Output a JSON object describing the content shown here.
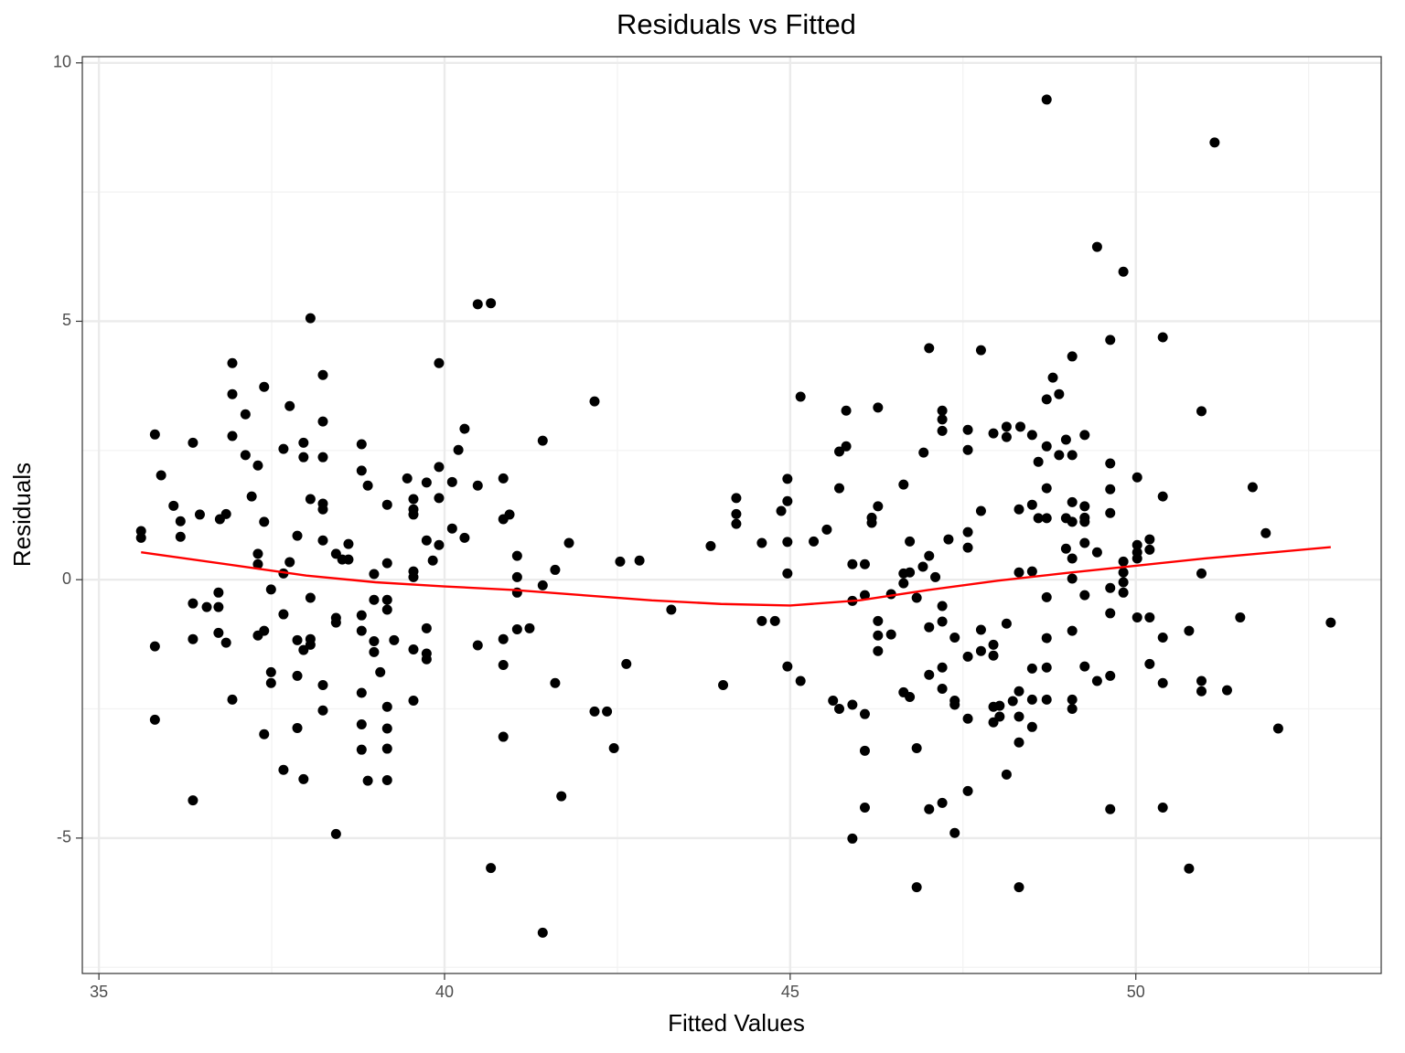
{
  "chart_data": {
    "type": "scatter",
    "title": "Residuals vs Fitted",
    "x_label": "Fitted Values",
    "y_label": "Residuals",
    "color": "#000000",
    "x": [
      35.61,
      35.61,
      35.81,
      35.81,
      35.81,
      35.9,
      36.08,
      36.18,
      36.18,
      36.36,
      36.36,
      36.36,
      36.36,
      36.46,
      36.56,
      36.73,
      36.73,
      36.73,
      36.75,
      36.84,
      36.84,
      36.93,
      36.93,
      36.93,
      36.93,
      37.12,
      37.12,
      37.21,
      37.3,
      37.3,
      37.3,
      37.3,
      37.39,
      37.39,
      37.39,
      37.39,
      37.49,
      37.49,
      37.49,
      37.67,
      37.67,
      37.67,
      37.67,
      37.76,
      37.76,
      37.87,
      37.87,
      37.87,
      37.87,
      37.96,
      37.96,
      37.96,
      37.96,
      38.06,
      38.06,
      38.06,
      38.06,
      38.06,
      38.24,
      38.24,
      38.24,
      38.24,
      38.24,
      38.24,
      38.24,
      38.24,
      38.43,
      38.43,
      38.43,
      38.43,
      38.52,
      38.61,
      38.61,
      38.8,
      38.8,
      38.8,
      38.8,
      38.8,
      38.8,
      38.8,
      38.89,
      38.89,
      38.98,
      38.98,
      38.98,
      38.98,
      39.07,
      39.17,
      39.17,
      39.17,
      39.17,
      39.17,
      39.17,
      39.17,
      39.17,
      39.27,
      39.46,
      39.55,
      39.55,
      39.55,
      39.55,
      39.55,
      39.55,
      39.55,
      39.74,
      39.74,
      39.74,
      39.74,
      39.74,
      39.83,
      39.92,
      39.92,
      39.92,
      39.92,
      40.11,
      40.11,
      40.2,
      40.29,
      40.29,
      40.48,
      40.48,
      40.48,
      40.67,
      40.67,
      40.85,
      40.85,
      40.85,
      40.85,
      40.85,
      40.94,
      41.05,
      41.05,
      41.05,
      41.05,
      41.23,
      41.42,
      41.42,
      41.42,
      41.6,
      41.6,
      41.69,
      41.8,
      42.17,
      42.17,
      42.35,
      42.45,
      42.54,
      42.63,
      42.82,
      43.28,
      43.85,
      44.03,
      44.22,
      44.22,
      44.22,
      44.59,
      44.59,
      44.78,
      44.87,
      44.96,
      44.96,
      44.96,
      44.96,
      44.96,
      45.15,
      45.15,
      45.34,
      45.53,
      45.62,
      45.71,
      45.71,
      45.71,
      45.81,
      45.81,
      45.9,
      45.9,
      45.9,
      45.9,
      46.08,
      46.08,
      46.08,
      46.08,
      46.08,
      46.18,
      46.18,
      46.27,
      46.27,
      46.27,
      46.27,
      46.27,
      46.46,
      46.46,
      46.64,
      46.64,
      46.64,
      46.64,
      46.73,
      46.73,
      46.73,
      46.83,
      46.83,
      46.83,
      46.92,
      46.93,
      47.01,
      47.01,
      47.01,
      47.01,
      47.01,
      47.1,
      47.2,
      47.2,
      47.2,
      47.2,
      47.2,
      47.2,
      47.2,
      47.2,
      47.29,
      47.38,
      47.38,
      47.38,
      47.38,
      47.57,
      47.57,
      47.57,
      47.57,
      47.57,
      47.57,
      47.57,
      47.76,
      47.76,
      47.76,
      47.76,
      47.94,
      47.94,
      47.94,
      47.94,
      47.94,
      48.03,
      48.03,
      48.13,
      48.13,
      48.13,
      48.13,
      48.22,
      48.31,
      48.31,
      48.31,
      48.31,
      48.31,
      48.31,
      48.33,
      48.5,
      48.5,
      48.5,
      48.5,
      48.5,
      48.5,
      48.59,
      48.59,
      48.71,
      48.71,
      48.71,
      48.71,
      48.71,
      48.71,
      48.71,
      48.71,
      48.71,
      48.8,
      48.89,
      48.89,
      48.99,
      48.99,
      48.99,
      49.08,
      49.08,
      49.08,
      49.08,
      49.08,
      49.08,
      49.08,
      49.08,
      49.08,
      49.26,
      49.26,
      49.26,
      49.26,
      49.26,
      49.26,
      49.26,
      49.44,
      49.44,
      49.44,
      49.63,
      49.63,
      49.63,
      49.63,
      49.63,
      49.63,
      49.63,
      49.63,
      49.82,
      49.82,
      49.82,
      49.82,
      49.82,
      50.02,
      50.02,
      50.02,
      50.02,
      50.02,
      50.2,
      50.2,
      50.2,
      50.2,
      50.39,
      50.39,
      50.39,
      50.39,
      50.39,
      50.77,
      50.77,
      50.95,
      50.95,
      50.95,
      50.95,
      51.14,
      51.32,
      51.51,
      51.69,
      51.88,
      52.06,
      52.82
    ],
    "values": [
      0.94,
      0.81,
      2.81,
      -1.29,
      -2.71,
      2.02,
      1.43,
      1.13,
      0.83,
      2.65,
      -0.46,
      -1.15,
      -4.27,
      1.26,
      -0.53,
      -0.25,
      -0.53,
      -1.03,
      1.17,
      1.27,
      -1.22,
      4.19,
      3.59,
      2.78,
      -2.32,
      3.2,
      2.41,
      1.61,
      2.21,
      0.5,
      0.3,
      -1.08,
      3.73,
      1.12,
      -0.99,
      -2.99,
      -0.19,
      -1.79,
      -2.0,
      2.53,
      0.12,
      -0.67,
      -3.68,
      3.36,
      0.34,
      0.85,
      -1.17,
      -1.86,
      -2.87,
      2.65,
      2.37,
      -1.36,
      -3.86,
      5.06,
      1.56,
      -0.35,
      -1.15,
      -1.26,
      3.96,
      3.06,
      2.37,
      1.47,
      1.36,
      0.76,
      -2.04,
      -2.53,
      0.5,
      -0.74,
      -0.83,
      -4.92,
      0.39,
      0.69,
      0.39,
      2.62,
      2.11,
      -0.69,
      -0.99,
      -2.19,
      -2.8,
      -3.29,
      1.82,
      -3.89,
      0.11,
      -0.39,
      -1.19,
      -1.4,
      -1.79,
      1.45,
      0.32,
      -0.39,
      -0.58,
      -2.46,
      -2.88,
      -3.27,
      -3.88,
      -1.17,
      1.96,
      1.56,
      1.36,
      1.26,
      0.16,
      0.05,
      -1.35,
      -2.34,
      1.88,
      0.76,
      -0.94,
      -1.43,
      -1.54,
      0.37,
      2.18,
      1.58,
      0.67,
      4.19,
      1.89,
      0.99,
      2.51,
      2.92,
      0.81,
      1.82,
      -1.27,
      5.33,
      5.35,
      -5.58,
      1.96,
      1.17,
      -1.15,
      -1.65,
      -3.04,
      1.26,
      0.46,
      0.05,
      -0.25,
      -0.96,
      -0.94,
      2.69,
      -0.11,
      -6.83,
      0.19,
      -2.0,
      -4.19,
      0.71,
      3.45,
      -2.55,
      -2.55,
      -3.26,
      0.35,
      -1.63,
      0.37,
      -0.58,
      0.65,
      -2.04,
      1.58,
      1.27,
      1.08,
      0.71,
      -0.8,
      -0.8,
      1.33,
      1.95,
      1.52,
      0.73,
      0.12,
      -1.68,
      3.54,
      -1.96,
      0.74,
      0.97,
      -2.34,
      1.77,
      2.48,
      -2.5,
      2.58,
      3.27,
      0.3,
      -0.41,
      -2.42,
      -5.01,
      0.3,
      -0.3,
      -2.6,
      -3.31,
      -4.41,
      1.2,
      1.1,
      3.33,
      1.42,
      -0.8,
      -1.08,
      -1.38,
      -0.28,
      -1.06,
      1.84,
      0.12,
      -0.07,
      -2.18,
      0.14,
      0.74,
      -2.27,
      -0.35,
      -3.26,
      -5.95,
      0.25,
      2.46,
      4.48,
      0.46,
      -0.92,
      -1.84,
      -4.44,
      0.05,
      3.27,
      3.1,
      2.88,
      -0.51,
      -0.81,
      -1.7,
      -2.11,
      -4.32,
      0.78,
      -2.34,
      -2.42,
      -4.9,
      -1.12,
      -1.49,
      2.51,
      2.9,
      0.92,
      0.62,
      -2.69,
      -4.09,
      1.33,
      4.44,
      -0.97,
      -1.38,
      2.83,
      -1.26,
      -1.47,
      -2.46,
      -2.76,
      -2.44,
      -2.65,
      2.96,
      2.76,
      -0.85,
      -3.77,
      -2.35,
      1.36,
      0.14,
      -2.16,
      -2.65,
      -3.15,
      -5.95,
      2.96,
      2.8,
      1.45,
      0.16,
      -1.72,
      -2.32,
      -2.85,
      2.28,
      1.19,
      9.29,
      3.49,
      2.58,
      1.77,
      1.19,
      -0.34,
      -1.13,
      -2.32,
      -1.7,
      3.91,
      3.59,
      2.41,
      2.71,
      1.19,
      0.6,
      4.32,
      2.41,
      1.5,
      1.12,
      0.41,
      0.02,
      -0.99,
      -2.32,
      -2.5,
      2.8,
      1.42,
      1.2,
      1.12,
      0.71,
      -0.3,
      -1.68,
      6.44,
      0.53,
      -1.96,
      2.25,
      1.75,
      1.29,
      4.64,
      -0.16,
      -0.65,
      -1.86,
      -4.44,
      5.96,
      0.35,
      0.14,
      -0.05,
      -0.25,
      1.98,
      0.67,
      0.53,
      0.41,
      -0.73,
      0.78,
      0.58,
      -0.73,
      -1.63,
      4.69,
      1.61,
      -1.12,
      -2.0,
      -4.41,
      -0.99,
      -5.59,
      3.26,
      0.12,
      -1.96,
      -2.16,
      8.46,
      -2.14,
      -0.73,
      1.79,
      0.9,
      -2.88,
      -0.83
    ],
    "line": {
      "color": "#ff0000",
      "x": [
        35.61,
        37,
        38,
        39,
        40,
        41,
        42,
        43,
        44,
        45,
        46,
        47,
        48,
        49,
        50,
        51,
        52,
        52.82
      ],
      "values": [
        0.53,
        0.27,
        0.08,
        -0.05,
        -0.13,
        -0.2,
        -0.3,
        -0.4,
        -0.47,
        -0.5,
        -0.4,
        -0.2,
        -0.02,
        0.13,
        0.27,
        0.41,
        0.53,
        0.63
      ]
    },
    "xlim": [
      34.76,
      53.55
    ],
    "ylim": [
      -7.62,
      10.12
    ],
    "xticks": [
      35,
      40,
      45,
      50
    ],
    "yticks": [
      -5,
      0,
      5,
      10
    ],
    "minor_xticks": [
      37.5,
      42.5,
      47.5,
      52.5
    ],
    "minor_yticks": [
      -7.5,
      -2.5,
      2.5,
      7.5
    ],
    "grid": true
  }
}
